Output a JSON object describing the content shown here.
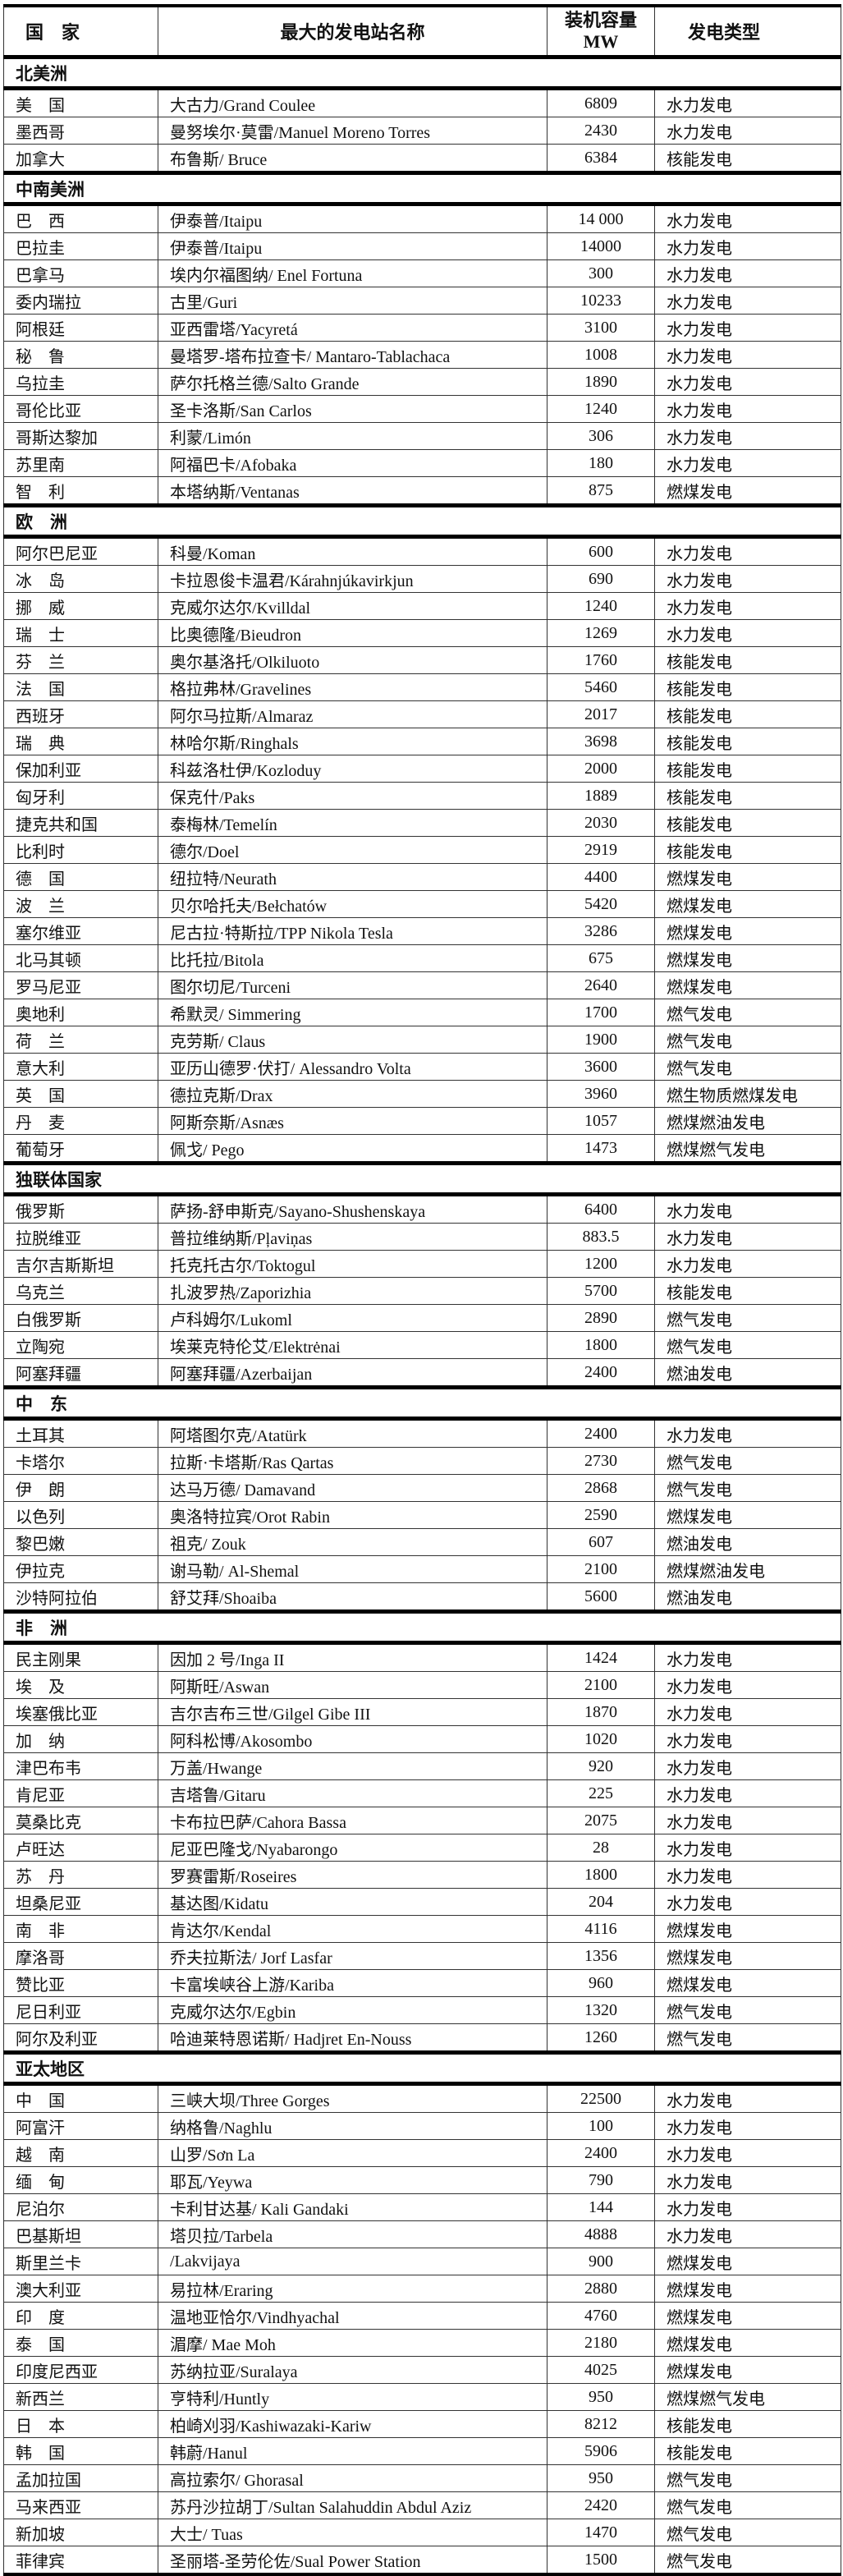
{
  "header": {
    "country": "国　家",
    "station": "最大的发电站名称",
    "capacity": "装机容量",
    "capacity_unit": "MW",
    "type": "发电类型"
  },
  "sections": [
    {
      "region": "北美洲",
      "rows": [
        [
          "美　国",
          "大古力/Grand Coulee",
          "6809",
          "水力发电"
        ],
        [
          "墨西哥",
          "曼努埃尔·莫雷/Manuel Moreno Torres",
          "2430",
          "水力发电"
        ],
        [
          "加拿大",
          "布鲁斯/ Bruce",
          "6384",
          "核能发电"
        ]
      ]
    },
    {
      "region": "中南美洲",
      "rows": [
        [
          "巴　西",
          "伊泰普/Itaipu",
          "14 000",
          "水力发电"
        ],
        [
          "巴拉圭",
          "伊泰普/Itaipu",
          "14000",
          "水力发电"
        ],
        [
          "巴拿马",
          "埃内尔福图纳/ Enel Fortuna",
          "300",
          "水力发电"
        ],
        [
          "委内瑞拉",
          "古里/Guri",
          "10233",
          "水力发电"
        ],
        [
          "阿根廷",
          "亚西雷塔/Yacyretá",
          "3100",
          "水力发电"
        ],
        [
          "秘　鲁",
          "曼塔罗-塔布拉查卡/ Mantaro-Tablachaca",
          "1008",
          "水力发电"
        ],
        [
          "乌拉圭",
          "萨尔托格兰德/Salto Grande",
          "1890",
          "水力发电"
        ],
        [
          "哥伦比亚",
          "圣卡洛斯/San Carlos",
          "1240",
          "水力发电"
        ],
        [
          "哥斯达黎加",
          "利蒙/Limón",
          "306",
          "水力发电"
        ],
        [
          "苏里南",
          "阿福巴卡/Afobaka",
          "180",
          "水力发电"
        ],
        [
          "智　利",
          "本塔纳斯/Ventanas",
          "875",
          "燃煤发电"
        ]
      ]
    },
    {
      "region": "欧　洲",
      "rows": [
        [
          "阿尔巴尼亚",
          "科曼/Koman",
          "600",
          "水力发电"
        ],
        [
          "冰　岛",
          "卡拉恩俊卡温君/Kárahnjúkavirkjun",
          "690",
          "水力发电"
        ],
        [
          "挪　威",
          "克威尔达尔/Kvilldal",
          "1240",
          "水力发电"
        ],
        [
          "瑞　士",
          "比奥德隆/Bieudron",
          "1269",
          "水力发电"
        ],
        [
          "芬　兰",
          "奥尔基洛托/Olkiluoto",
          "1760",
          "核能发电"
        ],
        [
          "法　国",
          "格拉弗林/Gravelines",
          "5460",
          "核能发电"
        ],
        [
          "西班牙",
          "阿尔马拉斯/Almaraz",
          "2017",
          "核能发电"
        ],
        [
          "瑞　典",
          "林哈尔斯/Ringhals",
          "3698",
          "核能发电"
        ],
        [
          "保加利亚",
          "科兹洛杜伊/Kozloduy",
          "2000",
          "核能发电"
        ],
        [
          "匈牙利",
          "保克什/Paks",
          "1889",
          "核能发电"
        ],
        [
          "捷克共和国",
          "泰梅林/Temelín",
          "2030",
          "核能发电"
        ],
        [
          "比利时",
          "德尔/Doel",
          "2919",
          "核能发电"
        ],
        [
          "德　国",
          "纽拉特/Neurath",
          "4400",
          "燃煤发电"
        ],
        [
          "波　兰",
          "贝尔哈托夫/Bełchatów",
          "5420",
          "燃煤发电"
        ],
        [
          "塞尔维亚",
          "尼古拉·特斯拉/TPP Nikola Tesla",
          "3286",
          "燃煤发电"
        ],
        [
          "北马其顿",
          "比托拉/Bitola",
          "675",
          "燃煤发电"
        ],
        [
          "罗马尼亚",
          "图尔切尼/Turceni",
          "2640",
          "燃煤发电"
        ],
        [
          " 奥地利",
          "希默灵/ Simmering",
          "1700",
          "燃气发电"
        ],
        [
          "荷　兰",
          "克劳斯/ Claus",
          "1900",
          "燃气发电"
        ],
        [
          " 意大利",
          "亚历山德罗·伏打/ Alessandro Volta",
          "3600",
          "燃气发电"
        ],
        [
          "英　国",
          "德拉克斯/Drax",
          "3960",
          "燃生物质燃煤发电"
        ],
        [
          "丹　麦",
          "阿斯奈斯/Asnæs",
          "1057",
          "燃煤燃油发电"
        ],
        [
          "葡萄牙",
          "佩戈/ Pego",
          "1473",
          "燃煤燃气发电"
        ]
      ]
    },
    {
      "region": "独联体国家",
      "rows": [
        [
          "俄罗斯",
          "萨扬-舒申斯克/Sayano-Shushenskaya",
          "6400",
          "水力发电"
        ],
        [
          "拉脱维亚",
          "普拉维纳斯/Pļaviņas",
          "883.5",
          "水力发电"
        ],
        [
          "吉尔吉斯斯坦",
          "托克托古尔/Toktogul",
          "1200",
          "水力发电"
        ],
        [
          "乌克兰",
          "扎波罗热/Zaporizhia",
          "5700",
          "核能发电"
        ],
        [
          "白俄罗斯",
          "卢科姆尔/Lukoml",
          "2890",
          "燃气发电"
        ],
        [
          "立陶宛",
          "埃莱克特伦艾/Elektrėnai",
          "1800",
          "燃气发电"
        ],
        [
          "阿塞拜疆",
          "阿塞拜疆/Azerbaijan",
          "2400",
          "燃油发电"
        ]
      ]
    },
    {
      "region": "中　东",
      "rows": [
        [
          "土耳其",
          "阿塔图尔克/Atatürk",
          "2400",
          "水力发电"
        ],
        [
          "卡塔尔",
          "拉斯·卡塔斯/Ras Qartas",
          "2730",
          "燃气发电"
        ],
        [
          "伊　朗",
          "达马万德/ Damavand",
          "2868",
          "燃气发电"
        ],
        [
          "以色列",
          "奥洛特拉宾/Orot Rabin",
          "2590",
          "燃煤发电"
        ],
        [
          "黎巴嫩",
          "祖克/ Zouk",
          "607",
          "燃油发电"
        ],
        [
          "伊拉克",
          "谢马勒/ Al-Shemal",
          "2100",
          "燃煤燃油发电"
        ],
        [
          " 沙特阿拉伯",
          "舒艾拜/Shoaiba",
          "5600",
          "燃油发电"
        ]
      ]
    },
    {
      "region": "非　洲",
      "rows": [
        [
          "民主刚果",
          "因加 2 号/Inga II",
          "1424",
          "水力发电"
        ],
        [
          "埃　及",
          "阿斯旺/Aswan",
          "2100",
          "水力发电"
        ],
        [
          "埃塞俄比亚",
          "吉尔吉布三世/Gilgel Gibe III",
          "1870",
          "水力发电"
        ],
        [
          "加　纳",
          "阿科松博/Akosombo",
          "1020",
          "水力发电"
        ],
        [
          "津巴布韦",
          "万盖/Hwange",
          "920",
          "水力发电"
        ],
        [
          " 肯尼亚",
          "吉塔鲁/Gitaru",
          "225",
          "水力发电"
        ],
        [
          "莫桑比克",
          "卡布拉巴萨/Cahora Bassa",
          "2075",
          "水力发电"
        ],
        [
          "卢旺达",
          "尼亚巴隆戈/Nyabarongo",
          "28",
          "水力发电"
        ],
        [
          "苏　丹",
          "罗赛雷斯/Roseires",
          "1800",
          "水力发电"
        ],
        [
          "坦桑尼亚",
          "基达图/Kidatu",
          "204",
          "水力发电"
        ],
        [
          "南　非",
          "肯达尔/Kendal",
          "4116",
          "燃煤发电"
        ],
        [
          "摩洛哥",
          "乔夫拉斯法/ Jorf Lasfar",
          "1356",
          "燃煤发电"
        ],
        [
          "赞比亚",
          "卡富埃峡谷上游/Kariba",
          "960",
          "燃煤发电"
        ],
        [
          "尼日利亚",
          "克威尔达尔/Egbin",
          "1320",
          "燃气发电"
        ],
        [
          "阿尔及利亚",
          "哈迪莱特恩诺斯/ Hadjret En-Nouss",
          "1260",
          "燃气发电"
        ]
      ]
    },
    {
      "region": "亚太地区",
      "rows": [
        [
          "中　国",
          "三峡大坝/Three Gorges",
          "22500",
          "水力发电"
        ],
        [
          "阿富汗",
          "纳格鲁/Naghlu",
          "100",
          "水力发电"
        ],
        [
          "越　南",
          "山罗/Sơn La",
          "2400",
          "水力发电"
        ],
        [
          "缅　甸",
          "耶瓦/Yeywa",
          "790",
          "水力发电"
        ],
        [
          "尼泊尔",
          "卡利甘达基/ Kali Gandaki",
          "144",
          "水力发电"
        ],
        [
          "巴基斯坦",
          "塔贝拉/Tarbela",
          "4888",
          "水力发电"
        ],
        [
          " 斯里兰卡",
          "/Lakvijaya",
          "900",
          "燃煤发电"
        ],
        [
          "澳大利亚",
          "易拉林/Eraring",
          "2880",
          "燃煤发电"
        ],
        [
          "印　度",
          "温地亚恰尔/Vindhyachal",
          "4760",
          "燃煤发电"
        ],
        [
          "泰　国",
          "湄摩/ Mae Moh",
          "2180",
          "燃煤发电"
        ],
        [
          "印度尼西亚",
          "苏纳拉亚/Suralaya",
          "4025",
          "燃煤发电"
        ],
        [
          "新西兰",
          "亨特利/Huntly",
          "950",
          "燃煤燃气发电"
        ],
        [
          "日　本",
          "柏崎刈羽/Kashiwazaki-Kariw",
          "8212",
          "核能发电"
        ],
        [
          "韩　国",
          "韩蔚/Hanul",
          "5906",
          "核能发电"
        ],
        [
          "孟加拉国",
          "高拉索尔/ Ghorasal",
          "950",
          "燃气发电"
        ],
        [
          "马来西亚",
          "苏丹沙拉胡丁/Sultan Salahuddin Abdul Aziz",
          "2420",
          "燃气发电"
        ],
        [
          "新加坡",
          "大士/ Tuas",
          "1470",
          "燃气发电"
        ],
        [
          "菲律宾",
          "圣丽塔-圣劳伦佐/Sual Power Station",
          "1500",
          "燃气发电"
        ]
      ]
    }
  ]
}
